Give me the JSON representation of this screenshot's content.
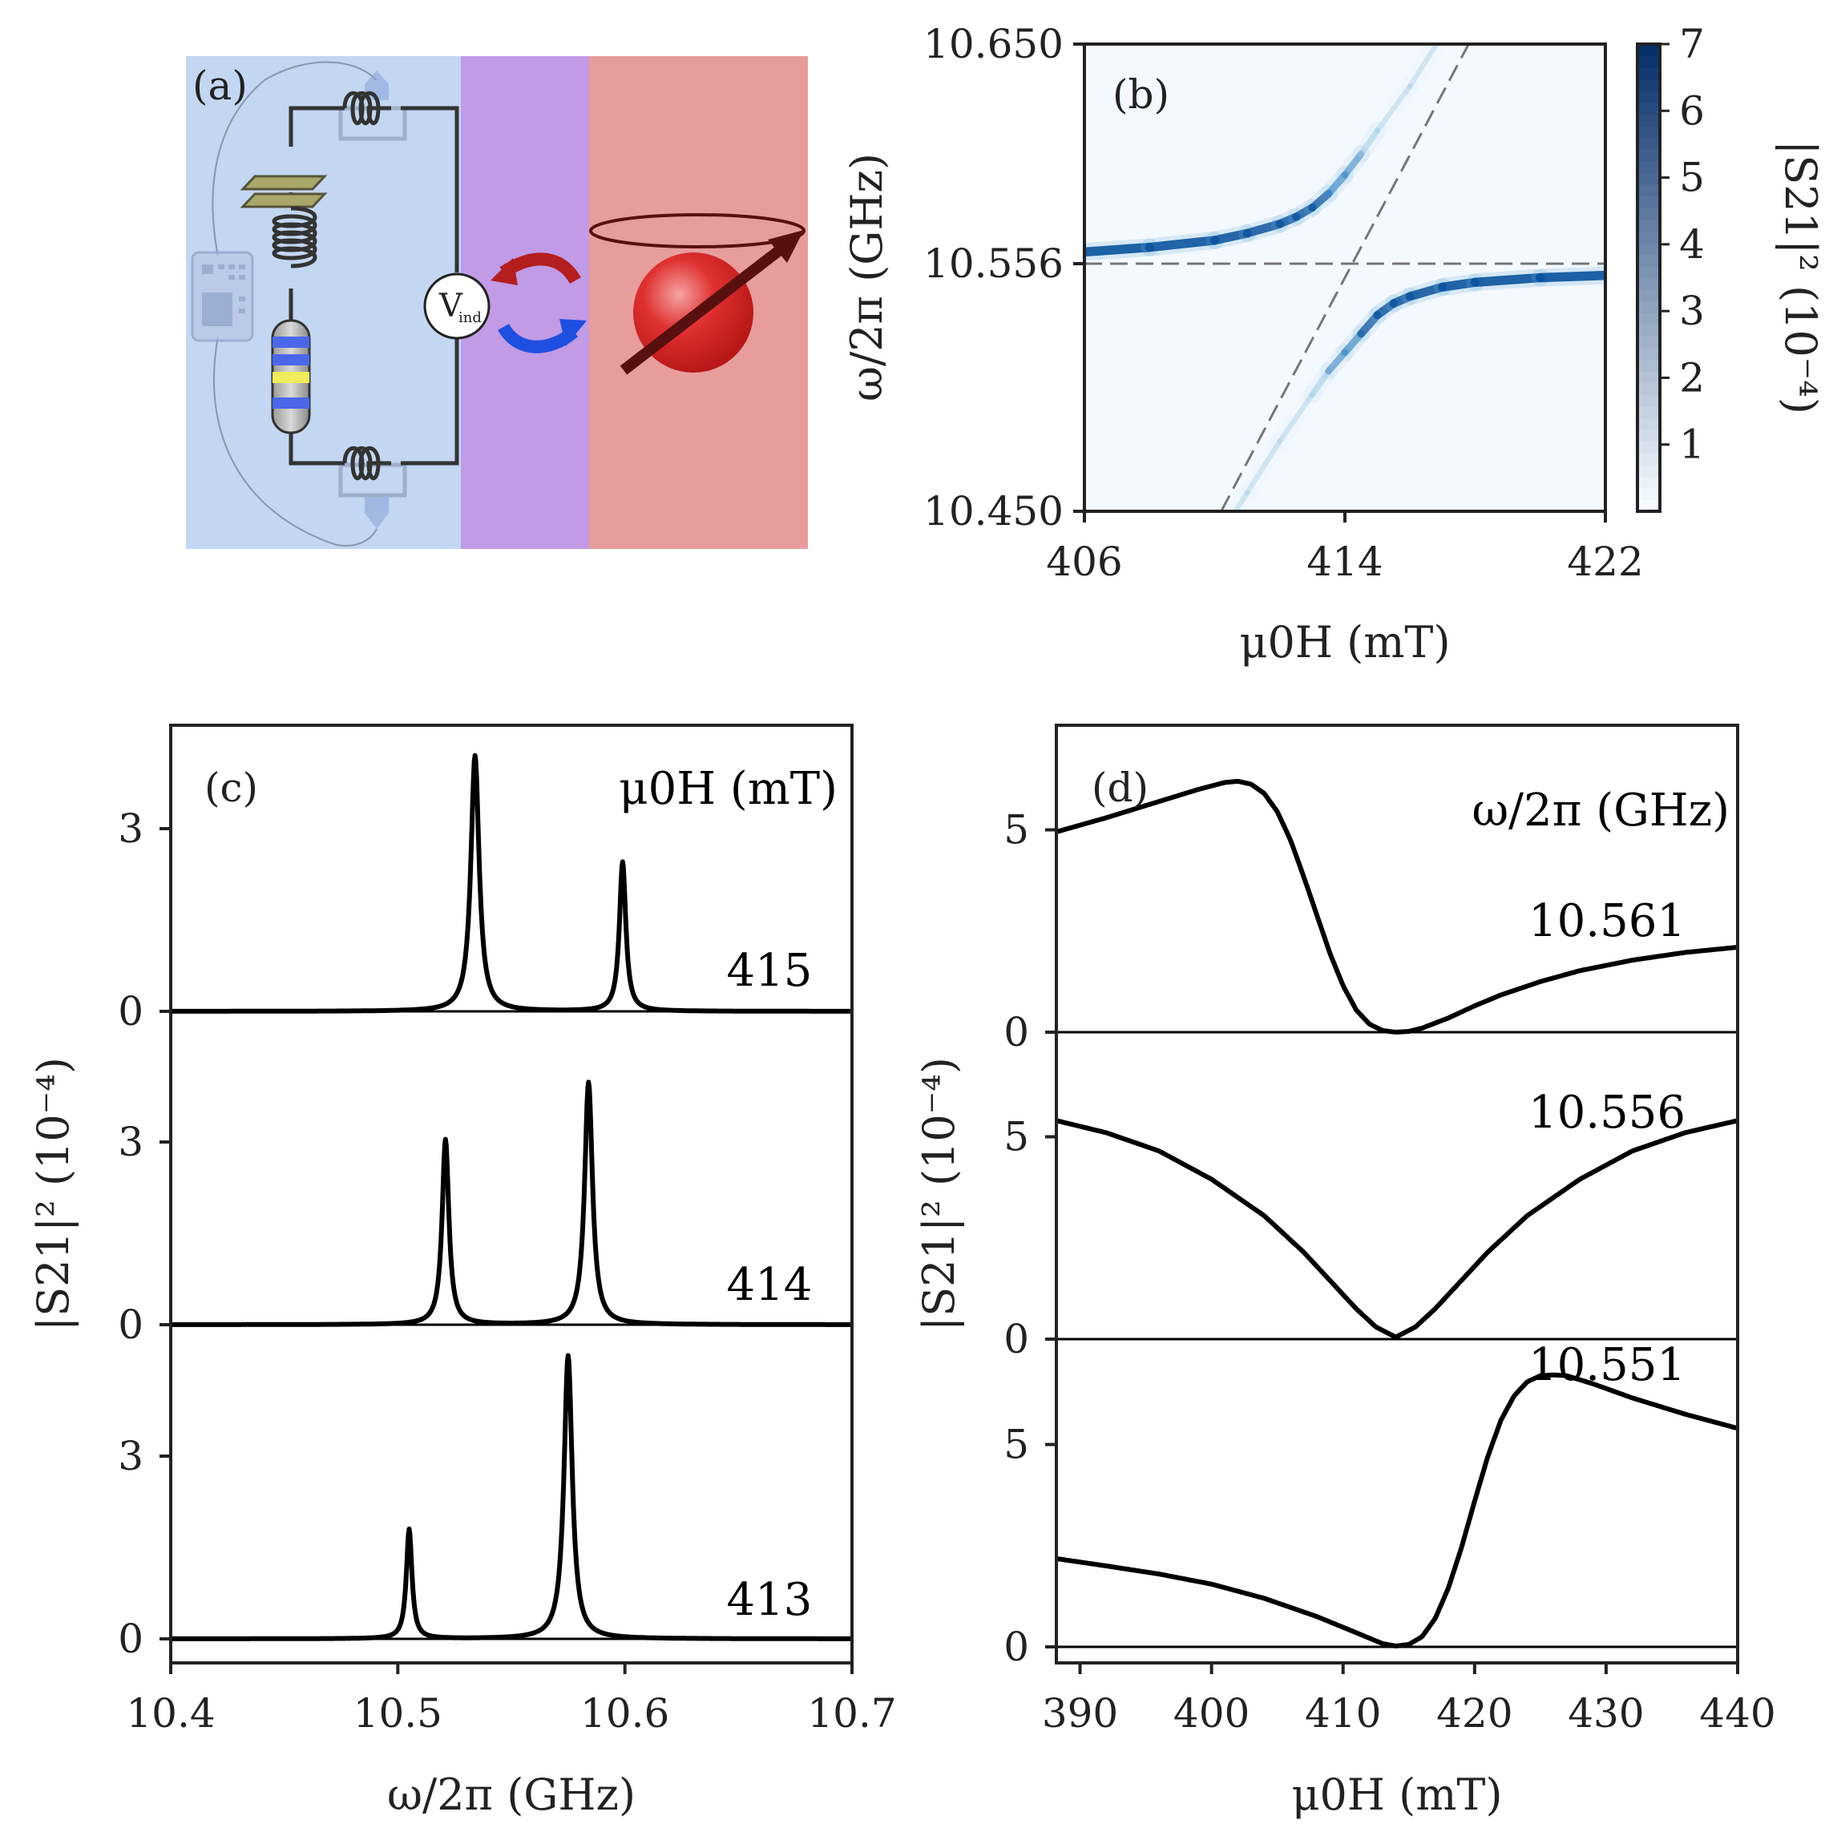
{
  "colors": {
    "circuit_bg": "#c3d6f2",
    "coupling_bg": "#c19be6",
    "magnet_bg": "#e89d9c",
    "sphere": "#d42020",
    "heatmap_max": "#08306b",
    "heatmap_min": "#f7fbff",
    "dashed": "#777777",
    "curve": "#000000"
  },
  "panel_a": {
    "label": "(a)",
    "voltage_label": "V",
    "voltage_sub": "ind",
    "icons": [
      "signal-generator-icon",
      "coaxial-coupler-icon",
      "capacitor-icon",
      "inductor-icon",
      "resistor-icon",
      "red-arrow-icon",
      "blue-arrow-icon",
      "magnet-sphere-icon",
      "spin-arrow-icon"
    ]
  },
  "chart_data": [
    {
      "panel": "(b)",
      "type": "heatmap",
      "xlabel": "μ0H (mT)",
      "ylabel": "ω/2π (GHz)",
      "xticks": [
        "406",
        "414",
        "422"
      ],
      "yticks": [
        "10.650",
        "10.556",
        "10.450"
      ],
      "xlim": [
        406,
        422
      ],
      "ylim": [
        10.45,
        10.65
      ],
      "colorbar": {
        "label": "|S21|² (10⁻⁴)",
        "ticks": [
          "1",
          "2",
          "3",
          "4",
          "5",
          "6",
          "7"
        ],
        "range": [
          0,
          7
        ]
      },
      "reference_lines": [
        {
          "kind": "horizontal",
          "y": 10.556
        },
        {
          "kind": "diagonal",
          "x": [
            410.2,
            417.8
          ],
          "y": [
            10.45,
            10.65
          ]
        }
      ],
      "upper_branch": {
        "x": [
          406,
          408,
          410,
          411,
          412,
          412.5,
          413,
          413.5,
          414,
          414.5,
          415,
          416,
          417,
          418
        ],
        "y": [
          10.561,
          10.563,
          10.566,
          10.569,
          10.573,
          10.576,
          10.58,
          10.586,
          10.594,
          10.603,
          10.613,
          10.632,
          10.654,
          10.676
        ]
      },
      "lower_branch": {
        "x": [
          410,
          411,
          412,
          413,
          413.5,
          414,
          414.5,
          415,
          415.5,
          416,
          417,
          418,
          420,
          422
        ],
        "y": [
          10.436,
          10.458,
          10.48,
          10.5,
          10.51,
          10.518,
          10.526,
          10.534,
          10.539,
          10.542,
          10.546,
          10.548,
          10.55,
          10.551
        ]
      }
    },
    {
      "panel": "(c)",
      "type": "line",
      "xlabel": "ω/2π (GHz)",
      "ylabel": "|S21|² (10⁻⁴)",
      "legend_title": "μ0H (mT)",
      "xticks": [
        "10.4",
        "10.5",
        "10.6",
        "10.7"
      ],
      "xlim": [
        10.4,
        10.7
      ],
      "yticks": [
        "3",
        "0"
      ],
      "series": [
        {
          "name": "415",
          "peaks": [
            {
              "x": 10.534,
              "height": 4.2,
              "width": 0.0022
            },
            {
              "x": 10.599,
              "height": 2.45,
              "width": 0.0017
            }
          ]
        },
        {
          "name": "414",
          "peaks": [
            {
              "x": 10.521,
              "height": 3.04,
              "width": 0.0018
            },
            {
              "x": 10.584,
              "height": 3.98,
              "width": 0.0021
            }
          ]
        },
        {
          "name": "413",
          "peaks": [
            {
              "x": 10.505,
              "height": 1.8,
              "width": 0.0015
            },
            {
              "x": 10.575,
              "height": 4.65,
              "width": 0.0022
            }
          ]
        }
      ]
    },
    {
      "panel": "(d)",
      "type": "line",
      "xlabel": "μ0H (mT)",
      "ylabel": "|S21|² (10⁻⁴)",
      "legend_title": "ω/2π (GHz)",
      "xticks": [
        "390",
        "400",
        "410",
        "420",
        "430",
        "440"
      ],
      "xlim": [
        388.2,
        440
      ],
      "yticks": [
        "5",
        "0"
      ],
      "series": [
        {
          "name": "10.561",
          "x": [
            388.2,
            392,
            396,
            399,
            401,
            402,
            403,
            404,
            405,
            406,
            407,
            408,
            409,
            410,
            411,
            412,
            413,
            414,
            415,
            416,
            418,
            420,
            422,
            425,
            428,
            432,
            436,
            440
          ],
          "y": [
            4.95,
            5.3,
            5.7,
            6.0,
            6.17,
            6.2,
            6.13,
            5.9,
            5.45,
            4.75,
            3.85,
            2.9,
            1.95,
            1.15,
            0.55,
            0.2,
            0.04,
            0.0,
            0.02,
            0.1,
            0.35,
            0.65,
            0.92,
            1.25,
            1.52,
            1.78,
            1.97,
            2.1
          ]
        },
        {
          "name": "10.556",
          "x": [
            388.2,
            392,
            396,
            400,
            404,
            407,
            409,
            411,
            412.5,
            414,
            415.5,
            417,
            419,
            421,
            424,
            428,
            432,
            436,
            440
          ],
          "y": [
            5.4,
            5.1,
            4.65,
            3.95,
            3.05,
            2.15,
            1.45,
            0.75,
            0.3,
            0.05,
            0.3,
            0.75,
            1.45,
            2.15,
            3.05,
            3.95,
            4.65,
            5.1,
            5.4
          ]
        },
        {
          "name": "10.551",
          "x": [
            388.2,
            392,
            396,
            400,
            404,
            408,
            411,
            413,
            414,
            415,
            416,
            417,
            418,
            419,
            420,
            421,
            422,
            423,
            424,
            425,
            426,
            427,
            429,
            432,
            436,
            440
          ],
          "y": [
            2.18,
            2.0,
            1.8,
            1.55,
            1.2,
            0.75,
            0.35,
            0.08,
            0.02,
            0.06,
            0.25,
            0.7,
            1.45,
            2.45,
            3.6,
            4.7,
            5.6,
            6.2,
            6.55,
            6.7,
            6.72,
            6.7,
            6.5,
            6.15,
            5.75,
            5.4
          ]
        }
      ]
    }
  ]
}
